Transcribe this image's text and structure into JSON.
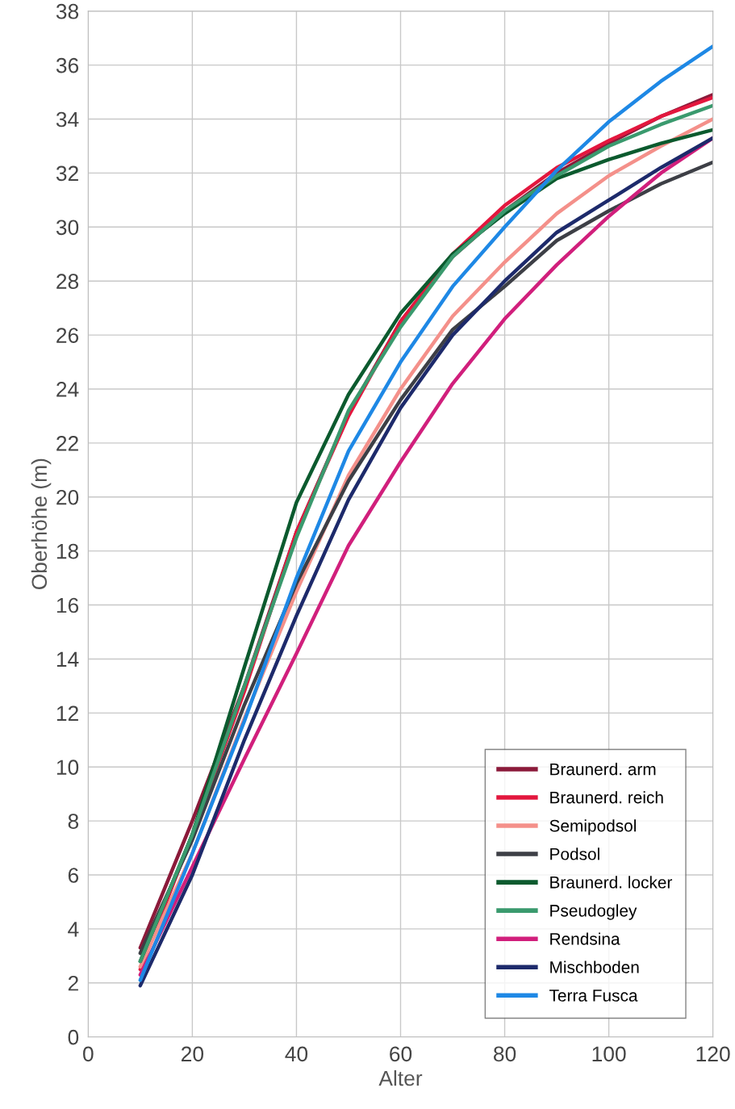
{
  "chart_data": {
    "type": "line",
    "xlabel": "Alter",
    "ylabel": "Oberhöhe (m)",
    "x": [
      10,
      20,
      30,
      40,
      50,
      60,
      70,
      80,
      90,
      100,
      110,
      120
    ],
    "xlim": [
      0,
      120
    ],
    "xticks": [
      0,
      20,
      40,
      60,
      80,
      100,
      120
    ],
    "ylim": [
      0,
      38
    ],
    "yticks": [
      0,
      2,
      4,
      6,
      8,
      10,
      12,
      14,
      16,
      18,
      20,
      22,
      24,
      26,
      28,
      30,
      32,
      34,
      36,
      38
    ],
    "grid": true,
    "legend": "bottom right",
    "marker": "none",
    "line_style": "solid",
    "series": [
      {
        "name": "Braunerd. arm",
        "color": "#8b1a3a",
        "values": [
          3.3,
          8.0,
          13.0,
          18.7,
          23.1,
          26.5,
          28.9,
          30.6,
          32.0,
          33.1,
          34.1,
          34.9
        ]
      },
      {
        "name": "Braunerd. reich",
        "color": "#e3173e",
        "values": [
          2.5,
          7.5,
          12.8,
          18.7,
          23.0,
          26.5,
          29.0,
          30.8,
          32.2,
          33.2,
          34.1,
          34.8
        ]
      },
      {
        "name": "Semipodsol",
        "color": "#f4908a",
        "values": [
          2.6,
          6.8,
          11.8,
          16.5,
          20.8,
          24.0,
          26.7,
          28.7,
          30.5,
          31.9,
          33.0,
          34.0
        ]
      },
      {
        "name": "Podsol",
        "color": "#3d3f46",
        "values": [
          3.1,
          7.3,
          12.3,
          16.8,
          20.6,
          23.6,
          26.2,
          27.8,
          29.5,
          30.6,
          31.6,
          32.4
        ]
      },
      {
        "name": "Braunerd. locker",
        "color": "#0b5a2e",
        "values": [
          2.8,
          7.5,
          13.7,
          19.8,
          23.8,
          26.8,
          29.0,
          30.5,
          31.8,
          32.5,
          33.1,
          33.6
        ]
      },
      {
        "name": "Pseudogley",
        "color": "#3a9a6e",
        "values": [
          2.8,
          7.5,
          13.0,
          18.5,
          23.2,
          26.3,
          28.9,
          30.6,
          31.9,
          33.0,
          33.8,
          34.5
        ]
      },
      {
        "name": "Rendsina",
        "color": "#d11f7c",
        "values": [
          2.3,
          6.3,
          10.3,
          14.2,
          18.2,
          21.3,
          24.2,
          26.6,
          28.6,
          30.4,
          32.0,
          33.3
        ]
      },
      {
        "name": "Mischboden",
        "color": "#1d2a6b",
        "values": [
          1.9,
          6.0,
          11.0,
          15.6,
          19.9,
          23.3,
          26.0,
          28.0,
          29.8,
          31.0,
          32.2,
          33.3
        ]
      },
      {
        "name": "Terra Fusca",
        "color": "#1e88e5",
        "values": [
          2.1,
          6.8,
          11.7,
          17.0,
          21.7,
          25.0,
          27.8,
          30.0,
          32.1,
          33.9,
          35.4,
          36.7
        ]
      }
    ]
  }
}
